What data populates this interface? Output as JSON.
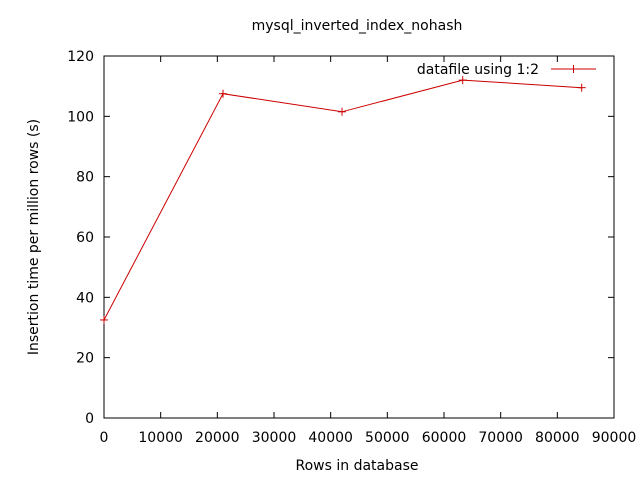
{
  "chart_data": {
    "type": "line",
    "title": "mysql_inverted_index_nohash",
    "xlabel": "Rows in database",
    "ylabel": "Insertion time per million rows (s)",
    "xlim": [
      0,
      90000
    ],
    "ylim": [
      0,
      120
    ],
    "xticks": [
      0,
      10000,
      20000,
      30000,
      40000,
      50000,
      60000,
      70000,
      80000,
      90000
    ],
    "yticks": [
      0,
      20,
      40,
      60,
      80,
      100,
      120
    ],
    "grid": false,
    "legend_position": "top-right",
    "series": [
      {
        "name": "datafile using 1:2",
        "color": "#cc0000",
        "marker": "plus",
        "x": [
          0,
          21000,
          42000,
          63300,
          84300
        ],
        "y": [
          32.5,
          107.5,
          101.5,
          112.0,
          109.5
        ]
      }
    ]
  }
}
